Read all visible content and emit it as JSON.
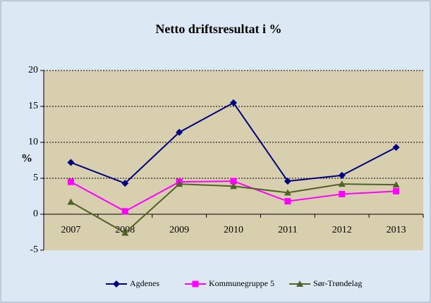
{
  "chart_data": {
    "type": "line",
    "title": "Netto driftsresultat i %",
    "ylabel": "%",
    "categories": [
      "2007",
      "2008",
      "2009",
      "2010",
      "2011",
      "2012",
      "2013"
    ],
    "series": [
      {
        "name": "Agdenes",
        "color": "#000080",
        "marker": "diamond",
        "values": [
          7.2,
          4.3,
          11.4,
          15.5,
          4.6,
          5.4,
          9.3
        ]
      },
      {
        "name": "Kommunegruppe 5",
        "color": "#ff00ff",
        "marker": "square",
        "values": [
          4.5,
          0.4,
          4.5,
          4.6,
          1.8,
          2.8,
          3.2
        ]
      },
      {
        "name": "Sør-Trøndelag",
        "color": "#4f6228",
        "marker": "triangle",
        "values": [
          1.7,
          -2.6,
          4.2,
          3.9,
          3.0,
          4.2,
          4.1
        ]
      }
    ],
    "ylim": [
      -5,
      20
    ],
    "yticks": [
      -5,
      0,
      5,
      10,
      15,
      20
    ],
    "grid": true,
    "legend": "bottom"
  }
}
